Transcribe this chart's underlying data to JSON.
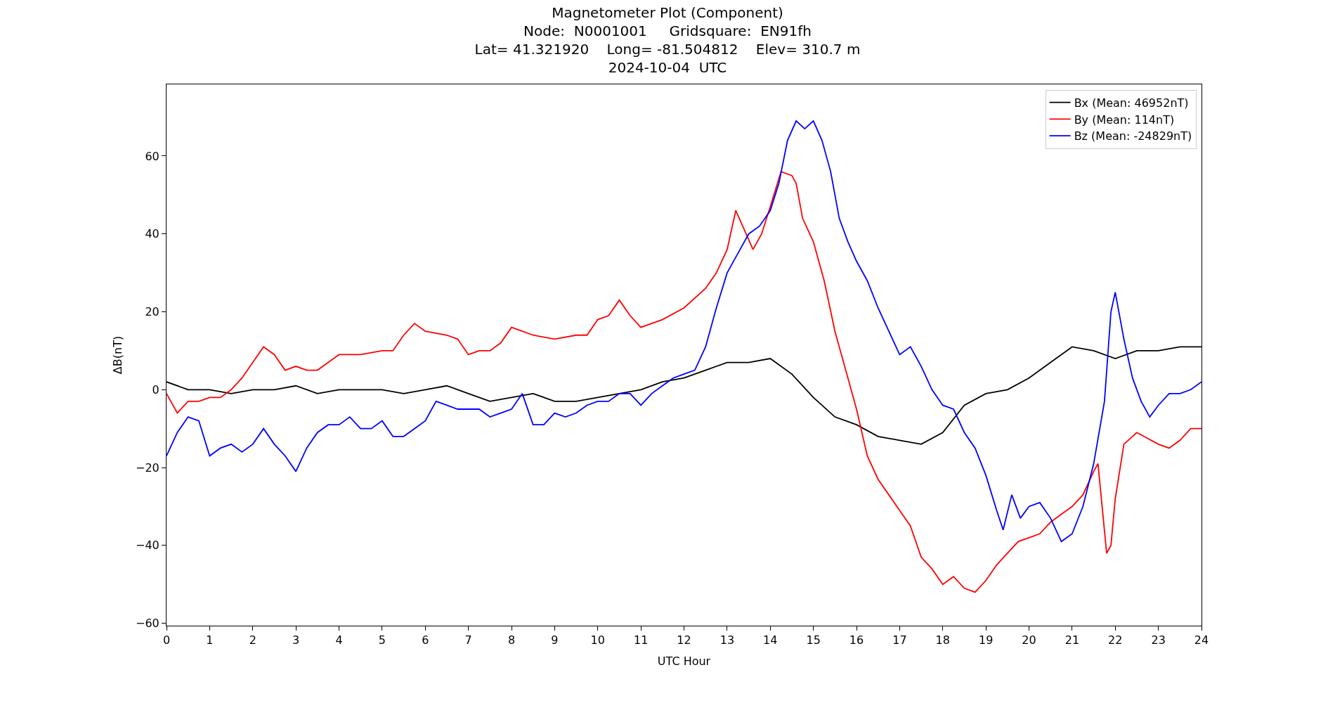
{
  "chart_data": {
    "type": "line",
    "title": "Magnetometer Plot (Component)\nNode:  N0001001     Gridsquare:  EN91fh\nLat= 41.321920    Long= -81.504812    Elev= 310.7 m\n2024-10-04  UTC",
    "xlabel": "UTC Hour",
    "ylabel": "ΔB(nT)",
    "xlim": [
      0,
      24
    ],
    "xticks": [
      0,
      1,
      2,
      3,
      4,
      5,
      6,
      7,
      8,
      9,
      10,
      11,
      12,
      13,
      14,
      15,
      16,
      17,
      18,
      19,
      20,
      21,
      22,
      23,
      24
    ],
    "ylim": [
      -60.6,
      78.4
    ],
    "yticks": [
      -60,
      -40,
      -20,
      0,
      20,
      40,
      60
    ],
    "grid": false,
    "legend": "top right",
    "marker": "none",
    "line_style": "solid",
    "series": [
      {
        "name": "Bx (Mean: 46952nT)",
        "color": "#000000",
        "x": [
          0,
          0.5,
          1,
          1.5,
          2,
          2.5,
          3,
          3.5,
          4,
          4.5,
          5,
          5.5,
          6,
          6.5,
          7,
          7.5,
          8,
          8.5,
          9,
          9.5,
          10,
          10.5,
          11,
          11.5,
          12,
          12.5,
          13,
          13.5,
          14,
          14.5,
          15,
          15.5,
          16,
          16.5,
          17,
          17.5,
          18,
          18.5,
          19,
          19.5,
          20,
          20.5,
          21,
          21.5,
          22,
          22.5,
          23,
          23.5,
          24
        ],
        "values": [
          2,
          0,
          0,
          -1,
          0,
          0,
          1,
          -1,
          0,
          0,
          0,
          -1,
          0,
          1,
          -1,
          -3,
          -2,
          -1,
          -3,
          -3,
          -2,
          -1,
          0,
          2,
          3,
          5,
          7,
          7,
          8,
          4,
          -2,
          -7,
          -9,
          -12,
          -13,
          -14,
          -11,
          -4,
          -1,
          0,
          3,
          7,
          11,
          10,
          8,
          10,
          10,
          11,
          11
        ]
      },
      {
        "name": "By (Mean: 114nT)",
        "color": "#ff0000",
        "x": [
          0,
          0.25,
          0.5,
          0.75,
          1,
          1.25,
          1.5,
          1.75,
          2,
          2.25,
          2.5,
          2.75,
          3,
          3.25,
          3.5,
          3.75,
          4,
          4.5,
          5,
          5.25,
          5.5,
          5.75,
          6,
          6.5,
          6.75,
          7,
          7.25,
          7.5,
          7.75,
          8,
          8.25,
          8.5,
          9,
          9.5,
          9.75,
          10,
          10.25,
          10.5,
          10.75,
          11,
          11.25,
          11.5,
          12,
          12.5,
          12.75,
          13,
          13.2,
          13.4,
          13.6,
          13.8,
          14,
          14.25,
          14.5,
          14.6,
          14.75,
          15,
          15.25,
          15.5,
          15.75,
          16,
          16.25,
          16.5,
          16.75,
          17,
          17.25,
          17.5,
          17.75,
          18,
          18.25,
          18.5,
          18.75,
          19,
          19.25,
          19.5,
          19.75,
          20,
          20.25,
          20.5,
          20.75,
          21,
          21.25,
          21.5,
          21.6,
          21.8,
          21.9,
          22,
          22.2,
          22.5,
          23,
          23.25,
          23.5,
          23.75,
          24
        ],
        "values": [
          -1,
          -6,
          -3,
          -3,
          -2,
          -2,
          0,
          3,
          7,
          11,
          9,
          5,
          6,
          5,
          5,
          7,
          9,
          9,
          10,
          10,
          14,
          17,
          15,
          14,
          13,
          9,
          10,
          10,
          12,
          16,
          15,
          14,
          13,
          14,
          14,
          18,
          19,
          23,
          19,
          16,
          17,
          18,
          21,
          26,
          30,
          36,
          46,
          41,
          36,
          40,
          47,
          56,
          55,
          53,
          44,
          38,
          28,
          15,
          5,
          -5,
          -17,
          -23,
          -27,
          -31,
          -35,
          -43,
          -46,
          -50,
          -48,
          -51,
          -52,
          -49,
          -45,
          -42,
          -39,
          -38,
          -37,
          -34,
          -32,
          -30,
          -27,
          -21,
          -19,
          -42,
          -40,
          -28,
          -14,
          -11,
          -14,
          -15,
          -13,
          -10,
          -10
        ]
      },
      {
        "name": "Bz (Mean: -24829nT)",
        "color": "#0000ff",
        "x": [
          0,
          0.25,
          0.5,
          0.75,
          1,
          1.25,
          1.5,
          1.75,
          2,
          2.25,
          2.5,
          2.75,
          3,
          3.25,
          3.5,
          3.75,
          4,
          4.25,
          4.5,
          4.75,
          5,
          5.25,
          5.5,
          5.75,
          6,
          6.25,
          6.5,
          6.75,
          7,
          7.25,
          7.5,
          7.75,
          8,
          8.25,
          8.5,
          8.75,
          9,
          9.25,
          9.5,
          9.75,
          10,
          10.25,
          10.5,
          10.75,
          11,
          11.25,
          11.5,
          11.75,
          12,
          12.25,
          12.5,
          12.75,
          13,
          13.25,
          13.5,
          13.75,
          14,
          14.2,
          14.4,
          14.6,
          14.8,
          15,
          15.2,
          15.4,
          15.6,
          15.8,
          16,
          16.25,
          16.5,
          16.75,
          17,
          17.25,
          17.5,
          17.75,
          18,
          18.25,
          18.5,
          18.75,
          19,
          19.25,
          19.4,
          19.6,
          19.8,
          20,
          20.25,
          20.5,
          20.75,
          21,
          21.25,
          21.5,
          21.75,
          21.9,
          22,
          22.2,
          22.4,
          22.6,
          22.8,
          23,
          23.25,
          23.5,
          23.75,
          24
        ],
        "values": [
          -17,
          -11,
          -7,
          -8,
          -17,
          -15,
          -14,
          -16,
          -14,
          -10,
          -14,
          -17,
          -21,
          -15,
          -11,
          -9,
          -9,
          -7,
          -10,
          -10,
          -8,
          -12,
          -12,
          -10,
          -8,
          -3,
          -4,
          -5,
          -5,
          -5,
          -7,
          -6,
          -5,
          -1,
          -9,
          -9,
          -6,
          -7,
          -6,
          -4,
          -3,
          -3,
          -1,
          -1,
          -4,
          -1,
          1,
          3,
          4,
          5,
          11,
          21,
          30,
          35,
          40,
          42,
          46,
          53,
          64,
          69,
          67,
          69,
          64,
          56,
          44,
          38,
          33,
          28,
          21,
          15,
          9,
          11,
          6,
          0,
          -4,
          -5,
          -11,
          -15,
          -22,
          -31,
          -36,
          -27,
          -33,
          -30,
          -29,
          -33,
          -39,
          -37,
          -30,
          -19,
          -3,
          20,
          25,
          13,
          3,
          -3,
          -7,
          -4,
          -1,
          -1,
          0,
          2
        ]
      }
    ]
  }
}
